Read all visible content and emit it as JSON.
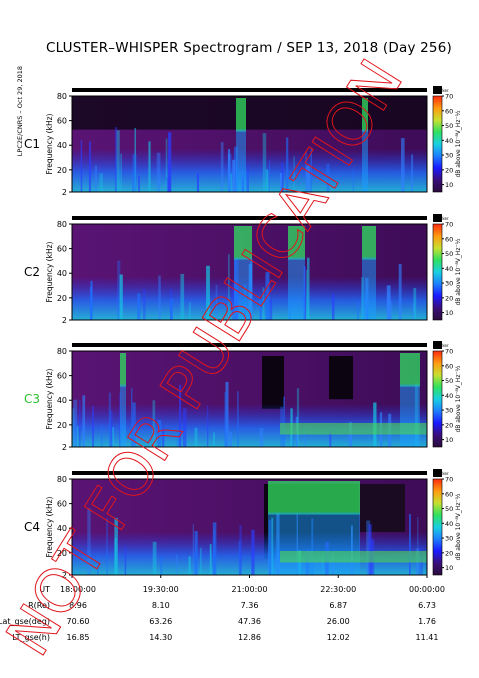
{
  "title": "CLUSTER–WHISPER Spectrogram / SEP 13, 2018 (Day 256)",
  "side_label": "LPC2E/CNRS – Oct 29, 2018",
  "watermark": "NOT FOR PUBLICATION",
  "colors": {
    "background": "#4a1060",
    "watermark": "#e0151b",
    "cluster_label_c3": "#2fbf2f"
  },
  "chart_data": [
    {
      "type": "heatmap",
      "panel": "C1",
      "label_color": "#000",
      "ylabel": "Frequency (kHz)",
      "yticks": [
        2,
        20,
        40,
        60,
        80
      ],
      "ylim": [
        2,
        80
      ],
      "colorbar_label": "dB above 10⁻⁸V_Hz⁻½",
      "colorbar_ticks": [
        10,
        20,
        30,
        40,
        50,
        60,
        70
      ],
      "marker": "worker"
    },
    {
      "type": "heatmap",
      "panel": "C2",
      "label_color": "#000",
      "ylabel": "Frequency (kHz)",
      "yticks": [
        2,
        20,
        40,
        60,
        80
      ],
      "ylim": [
        2,
        80
      ],
      "colorbar_label": "dB above 10⁻⁸V_Hz⁻½",
      "colorbar_ticks": [
        10,
        20,
        30,
        40,
        50,
        60,
        70
      ],
      "marker": "worker"
    },
    {
      "type": "heatmap",
      "panel": "C3",
      "label_color": "#2fbf2f",
      "ylabel": "Frequency (kHz)",
      "yticks": [
        2,
        20,
        40,
        60,
        80
      ],
      "ylim": [
        2,
        80
      ],
      "colorbar_label": "dB above 10⁻⁸V_Hz⁻½",
      "colorbar_ticks": [
        10,
        20,
        30,
        40,
        50,
        60,
        70
      ],
      "marker": "worker"
    },
    {
      "type": "heatmap",
      "panel": "C4",
      "label_color": "#000",
      "ylabel": "Frequency (kHz)",
      "yticks": [
        2,
        20,
        40,
        60,
        80
      ],
      "ylim": [
        2,
        80
      ],
      "colorbar_label": "dB above 10⁻⁸V_Hz⁻½",
      "colorbar_ticks": [
        10,
        20,
        30,
        40,
        50,
        60,
        70
      ],
      "marker": "worker"
    }
  ],
  "colorbar_colors": [
    "#2a0a3a",
    "#3a0f7a",
    "#1a1aff",
    "#1e7fff",
    "#18d0e0",
    "#30e060",
    "#c8e030",
    "#ff9a10",
    "#ff2a10"
  ],
  "x_axis": {
    "ticks": [
      "18:00:00",
      "19:30:00",
      "21:00:00",
      "22:30:00",
      "00:00:00"
    ]
  },
  "ephemeris": [
    {
      "label": "UT",
      "values": [
        "18:00:00",
        "19:30:00",
        "21:00:00",
        "22:30:00",
        "00:00:00"
      ]
    },
    {
      "label": "R(Re)",
      "values": [
        "8.96",
        "8.10",
        "7.36",
        "6.87",
        "6.73"
      ]
    },
    {
      "label": "Lat_gse(deg)",
      "values": [
        "70.60",
        "63.26",
        "47.36",
        "26.00",
        "1.76"
      ]
    },
    {
      "label": "LT_gse(h)",
      "values": [
        "16.85",
        "14.30",
        "12.86",
        "12.02",
        "11.41"
      ]
    }
  ]
}
